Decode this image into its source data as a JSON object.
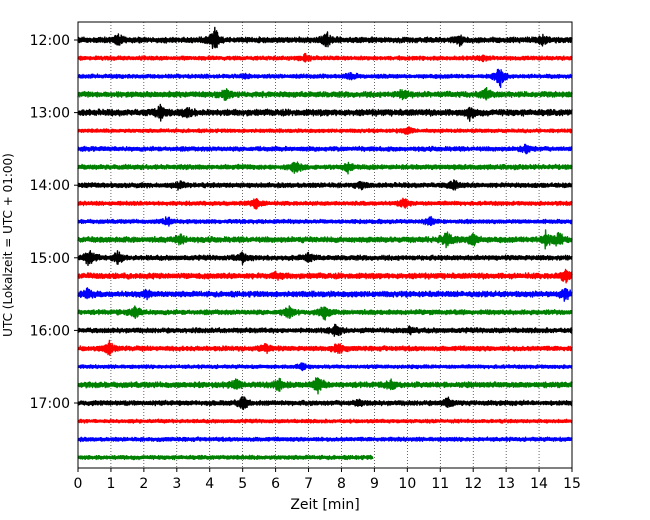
{
  "chart_data": {
    "type": "line",
    "title": "",
    "xlabel": "Zeit  [min]",
    "ylabel": "UTC (Lokalzeit = UTC + 01:00)",
    "xlim": [
      0,
      15
    ],
    "x_ticks": [
      "0",
      "1",
      "2",
      "3",
      "4",
      "5",
      "6",
      "7",
      "8",
      "9",
      "10",
      "11",
      "12",
      "13",
      "14",
      "15"
    ],
    "y_ticks": [
      {
        "label": "12:00",
        "row": 0
      },
      {
        "label": "13:00",
        "row": 4
      },
      {
        "label": "14:00",
        "row": 8
      },
      {
        "label": "15:00",
        "row": 12
      },
      {
        "label": "16:00",
        "row": 16
      },
      {
        "label": "17:00",
        "row": 20
      }
    ],
    "grid": {
      "vertical": true,
      "style": "dotted"
    },
    "colors": [
      "#000000",
      "#ff0000",
      "#0000ff",
      "#008000"
    ],
    "series": [
      {
        "start": "12:00",
        "color": "#000000",
        "end_min": 15,
        "amp": 0.35,
        "events": [
          [
            4.15,
            1.4
          ],
          [
            7.55,
            1.0
          ],
          [
            1.2,
            0.6
          ],
          [
            11.6,
            0.5
          ],
          [
            14.1,
            0.5
          ]
        ]
      },
      {
        "start": "12:15",
        "color": "#ff0000",
        "end_min": 15,
        "amp": 0.25,
        "events": [
          [
            6.9,
            0.4
          ],
          [
            12.3,
            0.4
          ]
        ]
      },
      {
        "start": "12:30",
        "color": "#0000ff",
        "end_min": 15,
        "amp": 0.25,
        "events": [
          [
            12.8,
            1.4
          ],
          [
            8.3,
            0.5
          ],
          [
            5.1,
            0.3
          ]
        ]
      },
      {
        "start": "12:45",
        "color": "#008000",
        "end_min": 15,
        "amp": 0.35,
        "events": [
          [
            4.5,
            0.6
          ],
          [
            9.85,
            0.6
          ],
          [
            12.4,
            0.7
          ]
        ]
      },
      {
        "start": "13:00",
        "color": "#000000",
        "end_min": 15,
        "amp": 0.4,
        "events": [
          [
            2.5,
            0.8
          ],
          [
            3.3,
            0.6
          ],
          [
            11.9,
            0.7
          ]
        ]
      },
      {
        "start": "13:15",
        "color": "#ff0000",
        "end_min": 15,
        "amp": 0.22,
        "events": [
          [
            10.0,
            0.5
          ]
        ]
      },
      {
        "start": "13:30",
        "color": "#0000ff",
        "end_min": 15,
        "amp": 0.28,
        "events": [
          [
            13.6,
            0.5
          ]
        ]
      },
      {
        "start": "13:45",
        "color": "#008000",
        "end_min": 15,
        "amp": 0.3,
        "events": [
          [
            6.6,
            0.8
          ],
          [
            8.2,
            0.5
          ]
        ]
      },
      {
        "start": "14:00",
        "color": "#000000",
        "end_min": 15,
        "amp": 0.3,
        "events": [
          [
            3.1,
            0.5
          ],
          [
            11.4,
            0.6
          ],
          [
            8.6,
            0.4
          ]
        ]
      },
      {
        "start": "14:15",
        "color": "#ff0000",
        "end_min": 15,
        "amp": 0.25,
        "events": [
          [
            5.4,
            0.7
          ],
          [
            9.9,
            0.6
          ]
        ]
      },
      {
        "start": "14:30",
        "color": "#0000ff",
        "end_min": 15,
        "amp": 0.25,
        "events": [
          [
            2.7,
            0.5
          ],
          [
            10.7,
            0.6
          ]
        ]
      },
      {
        "start": "14:45",
        "color": "#008000",
        "end_min": 15,
        "amp": 0.35,
        "events": [
          [
            3.1,
            0.6
          ],
          [
            11.2,
            1.0
          ],
          [
            12.0,
            0.8
          ],
          [
            14.2,
            1.0
          ],
          [
            14.6,
            0.8
          ]
        ]
      },
      {
        "start": "15:00",
        "color": "#000000",
        "end_min": 15,
        "amp": 0.3,
        "events": [
          [
            0.35,
            1.2
          ],
          [
            1.2,
            0.8
          ],
          [
            5.0,
            0.6
          ],
          [
            7.0,
            0.5
          ]
        ]
      },
      {
        "start": "15:15",
        "color": "#ff0000",
        "end_min": 15,
        "amp": 0.35,
        "events": [
          [
            14.8,
            0.8
          ],
          [
            6.0,
            0.4
          ]
        ]
      },
      {
        "start": "15:30",
        "color": "#0000ff",
        "end_min": 15,
        "amp": 0.35,
        "events": [
          [
            0.3,
            0.7
          ],
          [
            14.8,
            0.8
          ],
          [
            2.1,
            0.4
          ]
        ]
      },
      {
        "start": "15:45",
        "color": "#008000",
        "end_min": 15,
        "amp": 0.3,
        "events": [
          [
            1.75,
            0.7
          ],
          [
            6.4,
            0.8
          ],
          [
            7.5,
            1.0
          ]
        ]
      },
      {
        "start": "16:00",
        "color": "#000000",
        "end_min": 15,
        "amp": 0.3,
        "events": [
          [
            7.85,
            0.9
          ],
          [
            10.1,
            0.4
          ]
        ]
      },
      {
        "start": "16:15",
        "color": "#ff0000",
        "end_min": 15,
        "amp": 0.3,
        "events": [
          [
            0.95,
            0.9
          ],
          [
            7.9,
            0.8
          ],
          [
            5.7,
            0.5
          ]
        ]
      },
      {
        "start": "16:30",
        "color": "#0000ff",
        "end_min": 15,
        "amp": 0.22,
        "events": [
          [
            6.8,
            0.4
          ]
        ]
      },
      {
        "start": "16:45",
        "color": "#008000",
        "end_min": 15,
        "amp": 0.35,
        "events": [
          [
            7.3,
            1.2
          ],
          [
            6.1,
            0.8
          ],
          [
            4.8,
            0.6
          ],
          [
            9.5,
            0.5
          ]
        ]
      },
      {
        "start": "17:00",
        "color": "#000000",
        "end_min": 15,
        "amp": 0.3,
        "events": [
          [
            5.0,
            0.8
          ],
          [
            11.2,
            0.6
          ],
          [
            8.5,
            0.4
          ]
        ]
      },
      {
        "start": "17:15",
        "color": "#ff0000",
        "end_min": 15,
        "amp": 0.22,
        "events": []
      },
      {
        "start": "17:30",
        "color": "#0000ff",
        "end_min": 15,
        "amp": 0.25,
        "events": []
      },
      {
        "start": "17:45",
        "color": "#008000",
        "end_min": 8.95,
        "amp": 0.25,
        "events": []
      }
    ]
  }
}
